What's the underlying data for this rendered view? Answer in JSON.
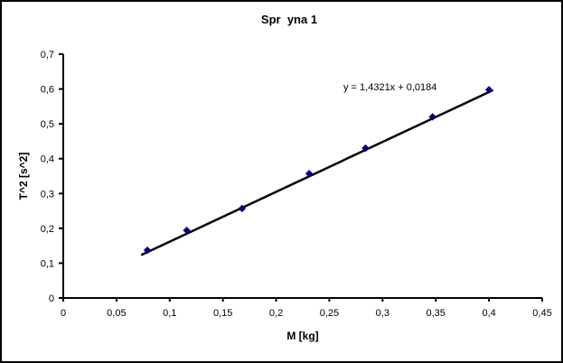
{
  "chart_data": {
    "type": "scatter",
    "title": "Spr  yna 1",
    "xlabel": "M [kg]",
    "ylabel": "T^2 [s^2]",
    "x": [
      0.079,
      0.116,
      0.168,
      0.231,
      0.284,
      0.347,
      0.4
    ],
    "y": [
      0.137,
      0.194,
      0.257,
      0.357,
      0.43,
      0.52,
      0.598
    ],
    "xlim": [
      0,
      0.45
    ],
    "ylim": [
      0,
      0.7
    ],
    "x_ticks": [
      0,
      0.05,
      0.1,
      0.15,
      0.2,
      0.25,
      0.3,
      0.35,
      0.4,
      0.45
    ],
    "x_tick_labels": [
      "0",
      "0,05",
      "0,1",
      "0,15",
      "0,2",
      "0,25",
      "0,3",
      "0,35",
      "0,4",
      "0,45"
    ],
    "y_ticks": [
      0,
      0.1,
      0.2,
      0.3,
      0.4,
      0.5,
      0.6,
      0.7
    ],
    "y_tick_labels": [
      "0",
      "0,1",
      "0,2",
      "0,3",
      "0,4",
      "0,5",
      "0,6",
      "0,7"
    ],
    "grid": false,
    "legend": false,
    "marker": {
      "shape": "diamond",
      "color": "#000080",
      "size": 7
    },
    "trendline": {
      "slope": 1.4321,
      "intercept": 0.0184,
      "x_start": 0.074,
      "x_end": 0.403,
      "color": "#000000",
      "equation": "y = 1,4321x + 0,0184"
    },
    "axis_color": "#000000",
    "background_color": "#ffffff",
    "border_color": "#000000"
  }
}
